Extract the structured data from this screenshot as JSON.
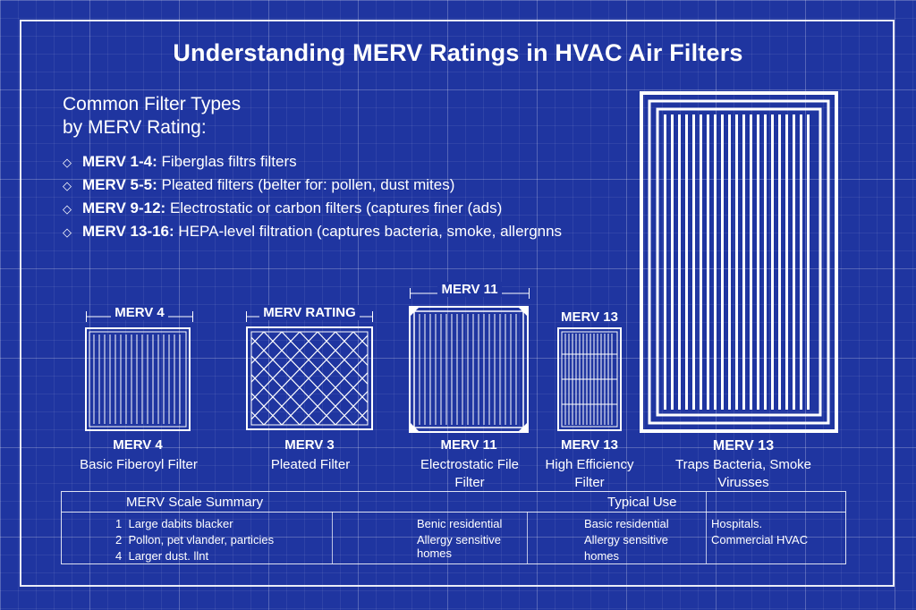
{
  "title": "Understanding MERV Ratings in HVAC Air Filters",
  "list": {
    "heading_line1": "Common Filter Types",
    "heading_line2": "by MERV Rating:",
    "items": [
      {
        "label": "MERV 1-4:",
        "text": " Fiberglas filtrs filters"
      },
      {
        "label": "MERV 5-5:",
        "text": " Pleated filters (belter for: pollen, dust mites)"
      },
      {
        "label": "MERV 9-12:",
        "text": " Electrostatic or carbon filters (captures finer (ads)"
      },
      {
        "label": "MERV 13-16:",
        "text": " HEPA-level filtration (captures bacteria, smoke, allergnns"
      }
    ]
  },
  "filters": [
    {
      "dim_label": "MERV 4",
      "merv": "MERV 4",
      "desc": "Basic Fiberoyl Filter"
    },
    {
      "dim_label": "MERV RATING",
      "merv": "MERV 3",
      "desc": "Pleated Filter"
    },
    {
      "dim_label": "MERV 11",
      "merv": "MERV 11",
      "desc": "Electrostatic File Filter"
    },
    {
      "dim_label": "MERV 13",
      "merv": "MERV 13",
      "desc": "High Efficiency Filter"
    },
    {
      "dim_label": "",
      "merv": "MERV 13",
      "desc": "Traps Bacteria, Smoke Virusses"
    }
  ],
  "summary": {
    "header_left": "MERV Scale Summary",
    "header_right": "Typical Use",
    "rows": [
      {
        "num": "1",
        "text": "Large dabits blacker"
      },
      {
        "num": "2",
        "text": "Pollon, pet vlander, particies"
      },
      {
        "num": "4",
        "text": "Larger dust. llnt"
      }
    ],
    "col2_line1": "Benic residential",
    "col2_line2": "Allergy sensitive",
    "col2_line3": "homes",
    "col3_line1": "Basic residential",
    "col3_line2": "Allergy sensitive",
    "col3_line3": "homes",
    "col4_line1": "Hospitals.",
    "col4_line2": "Commercial HVAC"
  },
  "colors": {
    "background": "#1f35a0",
    "lines": "#ffffff"
  }
}
